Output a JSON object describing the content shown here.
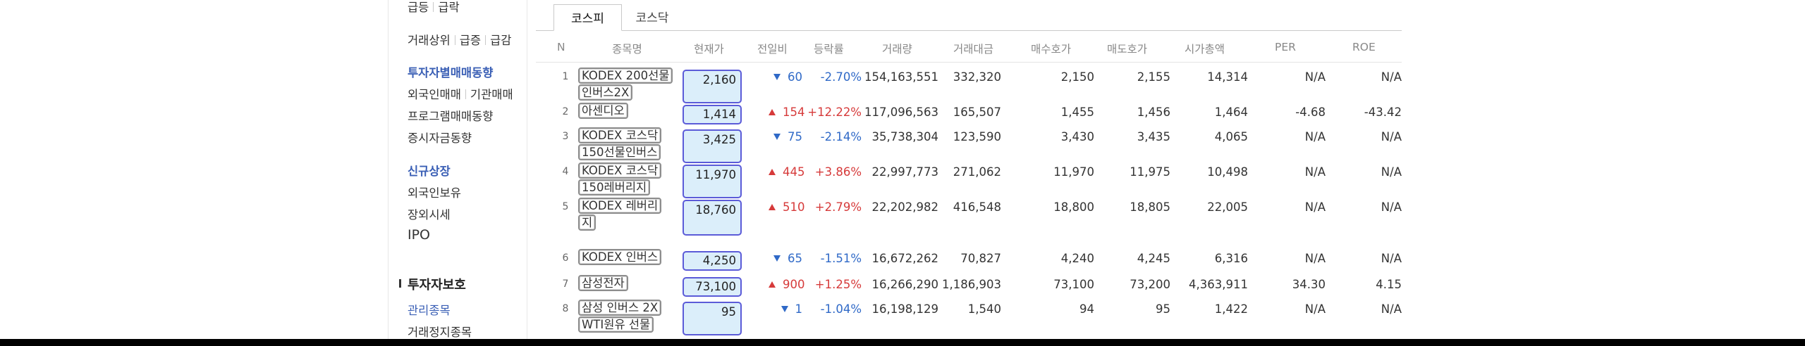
{
  "sidebar": {
    "top_items": [
      "급등",
      "급락"
    ],
    "rank_tabs": [
      "거래상위",
      "급증",
      "급감"
    ],
    "investor_title": "투자자별매매동향",
    "investor_items": [
      "외국인매매",
      "기관매매"
    ],
    "program": "프로그램매매동향",
    "deposit": "증시자금동향",
    "new_listing": "신규상장",
    "foreign_holding": "외국인보유",
    "otc": "장외시세",
    "ipo": "IPO",
    "protection_title": "투자자보호",
    "managed": "관리종목",
    "halted": "거래정지종목"
  },
  "tabs": [
    "코스피",
    "코스닥"
  ],
  "headers": [
    "N",
    "종목명",
    "현재가",
    "전일비",
    "등락률",
    "거래량",
    "거래대금",
    "매수호가",
    "매도호가",
    "시가총액",
    "PER",
    "ROE"
  ],
  "rows": [
    {
      "n": "1",
      "name": [
        "KODEX 200선물",
        "인버스2X"
      ],
      "price": "2,160",
      "dir": "down",
      "change": "60",
      "rate": "-2.70%",
      "volume": "154,163,551",
      "amount": "332,320",
      "bid": "2,150",
      "ask": "2,155",
      "cap": "14,314",
      "per": "N/A",
      "roe": "N/A"
    },
    {
      "n": "2",
      "name": [
        "아센디오"
      ],
      "price": "1,414",
      "dir": "up",
      "change": "154",
      "rate": "+12.22%",
      "volume": "117,096,563",
      "amount": "165,507",
      "bid": "1,455",
      "ask": "1,456",
      "cap": "1,464",
      "per": "-4.68",
      "roe": "-43.42"
    },
    {
      "n": "3",
      "name": [
        "KODEX 코스닥",
        "150선물인버스"
      ],
      "price": "3,425",
      "dir": "down",
      "change": "75",
      "rate": "-2.14%",
      "volume": "35,738,304",
      "amount": "123,590",
      "bid": "3,430",
      "ask": "3,435",
      "cap": "4,065",
      "per": "N/A",
      "roe": "N/A"
    },
    {
      "n": "4",
      "name": [
        "KODEX 코스닥",
        "150레버리지"
      ],
      "price": "11,970",
      "dir": "up",
      "change": "445",
      "rate": "+3.86%",
      "volume": "22,997,773",
      "amount": "271,062",
      "bid": "11,970",
      "ask": "11,975",
      "cap": "10,498",
      "per": "N/A",
      "roe": "N/A"
    },
    {
      "n": "5",
      "name": [
        "KODEX 레버리",
        "지"
      ],
      "price": "18,760",
      "dir": "up",
      "change": "510",
      "rate": "+2.79%",
      "volume": "22,202,982",
      "amount": "416,548",
      "bid": "18,800",
      "ask": "18,805",
      "cap": "22,005",
      "per": "N/A",
      "roe": "N/A"
    },
    {
      "n": "6",
      "name": [
        "KODEX 인버스"
      ],
      "price": "4,250",
      "dir": "down",
      "change": "65",
      "rate": "-1.51%",
      "volume": "16,672,262",
      "amount": "70,827",
      "bid": "4,240",
      "ask": "4,245",
      "cap": "6,316",
      "per": "N/A",
      "roe": "N/A"
    },
    {
      "n": "7",
      "name": [
        "삼성전자"
      ],
      "price": "73,100",
      "dir": "up",
      "change": "900",
      "rate": "+1.25%",
      "volume": "16,266,290",
      "amount": "1,186,903",
      "bid": "73,100",
      "ask": "73,200",
      "cap": "4,363,911",
      "per": "34.30",
      "roe": "4.15"
    },
    {
      "n": "8",
      "name": [
        "삼성 인버스 2X",
        "WTI원유 선물"
      ],
      "price": "95",
      "dir": "down",
      "change": "1",
      "rate": "-1.04%",
      "volume": "16,198,129",
      "amount": "1,540",
      "bid": "94",
      "ask": "95",
      "cap": "1,422",
      "per": "N/A",
      "roe": "N/A"
    }
  ],
  "colors": {
    "up": "#d63a3a",
    "down": "#2f69c7",
    "price_box_border": "#5b5bd8",
    "price_box_fill": "#dbeefa"
  }
}
